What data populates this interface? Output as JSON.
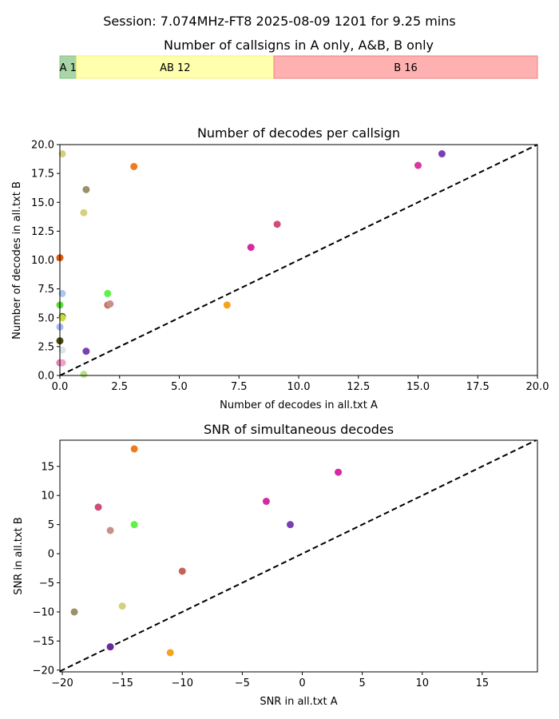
{
  "figure": {
    "suptitle": "Session: 7.074MHz-FT8 2025-08-09 1201 for 9.25 mins"
  },
  "chart_data": [
    {
      "type": "bar",
      "orientation": "horizontal-stacked",
      "title": "Number of callsigns in A only, A&B, B only",
      "segments": [
        {
          "label": "A 1",
          "value": 1,
          "color": "#a8d5a8",
          "edge": "#86c486"
        },
        {
          "label": "AB 12",
          "value": 12,
          "color": "#ffffae",
          "edge": "#f0f080"
        },
        {
          "label": "B 16",
          "value": 16,
          "color": "#ffb0b0",
          "edge": "#f08080"
        }
      ]
    },
    {
      "type": "scatter",
      "title": "Number of decodes per callsign",
      "xlabel": "Number of decodes in all.txt A",
      "ylabel": "Number of decodes in all.txt B",
      "xlim": [
        0,
        20
      ],
      "ylim": [
        0,
        20
      ],
      "xticks": [
        "0.0",
        "2.5",
        "5.0",
        "7.5",
        "10.0",
        "12.5",
        "15.0",
        "17.5",
        "20.0"
      ],
      "yticks": [
        "0.0",
        "2.5",
        "5.0",
        "7.5",
        "10.0",
        "12.5",
        "15.0",
        "17.5",
        "20.0"
      ],
      "diagonal": true,
      "points": [
        {
          "x": 0.1,
          "y": 19.2,
          "color": "#d6cf7d"
        },
        {
          "x": 3.1,
          "y": 18.1,
          "color": "#f07a1c"
        },
        {
          "x": 1.1,
          "y": 16.1,
          "color": "#9c8f6a"
        },
        {
          "x": 1.0,
          "y": 14.1,
          "color": "#d6cf7d"
        },
        {
          "x": 16.0,
          "y": 19.2,
          "color": "#7a3fb4"
        },
        {
          "x": 15.0,
          "y": 18.2,
          "color": "#d63a9c"
        },
        {
          "x": 9.1,
          "y": 13.1,
          "color": "#d04c7a"
        },
        {
          "x": 8.0,
          "y": 11.1,
          "color": "#d62aa4"
        },
        {
          "x": 7.0,
          "y": 6.1,
          "color": "#f5a21c"
        },
        {
          "x": 0.0,
          "y": 10.2,
          "color": "#e05a10"
        },
        {
          "x": 0.1,
          "y": 7.1,
          "color": "#a8c8f0"
        },
        {
          "x": 0.0,
          "y": 6.1,
          "color": "#5adc3c"
        },
        {
          "x": 2.0,
          "y": 7.1,
          "color": "#62f04a"
        },
        {
          "x": 2.0,
          "y": 6.1,
          "color": "#c87060"
        },
        {
          "x": 2.1,
          "y": 6.2,
          "color": "#c8908a"
        },
        {
          "x": 0.1,
          "y": 5.1,
          "color": "#3a5a10"
        },
        {
          "x": 0.1,
          "y": 5.0,
          "color": "#c8dc3c"
        },
        {
          "x": 0.0,
          "y": 4.2,
          "color": "#a8b8f0"
        },
        {
          "x": 0.0,
          "y": 3.0,
          "color": "#4a4a10"
        },
        {
          "x": 0.1,
          "y": 2.2,
          "color": "#d8e8e8"
        },
        {
          "x": 1.1,
          "y": 2.1,
          "color": "#7a3fb4"
        },
        {
          "x": 0.0,
          "y": 1.1,
          "color": "#e07ab4"
        },
        {
          "x": 0.1,
          "y": 1.1,
          "color": "#f0a0c8"
        },
        {
          "x": 1.0,
          "y": 0.1,
          "color": "#b8e08a"
        }
      ]
    },
    {
      "type": "scatter",
      "title": "SNR of simultaneous decodes",
      "xlabel": "SNR in all.txt A",
      "ylabel": "SNR in all.txt B",
      "xlim": [
        -20.2,
        19.6
      ],
      "ylim": [
        -20.3,
        19.5
      ],
      "xticks": [
        "−20",
        "−15",
        "−10",
        "−5",
        "0",
        "5",
        "10",
        "15"
      ],
      "yticks": [
        "−20",
        "−15",
        "−10",
        "−5",
        "0",
        "5",
        "10",
        "15"
      ],
      "diagonal": true,
      "points": [
        {
          "x": -14,
          "y": 18,
          "color": "#f07a1c"
        },
        {
          "x": 3,
          "y": 14,
          "color": "#d62aa4"
        },
        {
          "x": -3,
          "y": 9,
          "color": "#d62aa4"
        },
        {
          "x": -17,
          "y": 8,
          "color": "#d04c7a"
        },
        {
          "x": -14,
          "y": 5,
          "color": "#62f04a"
        },
        {
          "x": -1,
          "y": 5,
          "color": "#7a3fb4"
        },
        {
          "x": -16,
          "y": 4,
          "color": "#c8908a"
        },
        {
          "x": -10,
          "y": -3,
          "color": "#c8605a"
        },
        {
          "x": -19,
          "y": -10,
          "color": "#9c8f6a"
        },
        {
          "x": -15,
          "y": -9,
          "color": "#d6cf7d"
        },
        {
          "x": -16,
          "y": -16,
          "color": "#6a2a9a"
        },
        {
          "x": -11,
          "y": -17,
          "color": "#f5a21c"
        }
      ]
    }
  ]
}
